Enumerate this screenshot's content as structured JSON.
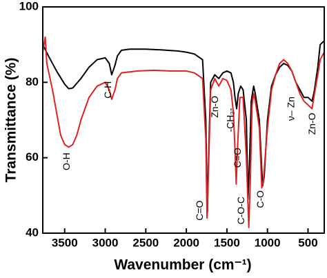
{
  "chart_data": {
    "type": "line",
    "x_label": "Wavenumber (cm⁻¹)",
    "y_label": "Transmittance (%)",
    "xlim": [
      3770,
      300
    ],
    "ylim": [
      40,
      100
    ],
    "xticks": [
      3500,
      3000,
      2500,
      2000,
      1500,
      1000,
      500
    ],
    "yticks": [
      40,
      60,
      80,
      100
    ],
    "series": [
      {
        "color": "#000000",
        "x": [
          3770,
          3700,
          3600,
          3500,
          3450,
          3400,
          3300,
          3200,
          3100,
          3000,
          2950,
          2920,
          2880,
          2850,
          2800,
          2700,
          2500,
          2300,
          2100,
          2000,
          1900,
          1800,
          1760,
          1740,
          1720,
          1700,
          1650,
          1600,
          1550,
          1500,
          1450,
          1420,
          1400,
          1380,
          1360,
          1330,
          1300,
          1260,
          1240,
          1220,
          1200,
          1170,
          1150,
          1100,
          1060,
          1040,
          1000,
          950,
          900,
          850,
          800,
          750,
          700,
          650,
          600,
          550,
          500,
          450,
          420,
          380,
          350,
          300
        ],
        "values": [
          90,
          87,
          83,
          79.5,
          78.3,
          78.5,
          81,
          84,
          86,
          86.5,
          85,
          82,
          84.5,
          87,
          88.5,
          88.8,
          88.8,
          88.6,
          88.3,
          88,
          87.5,
          86,
          70,
          45.5,
          65,
          80,
          82,
          81,
          82.5,
          83,
          82.5,
          80,
          76,
          73,
          77,
          79,
          78,
          70,
          49,
          60,
          75,
          79,
          77,
          70,
          52.5,
          55,
          70,
          79,
          82,
          84,
          85,
          84.5,
          83,
          80,
          78,
          76,
          76,
          75,
          78,
          84,
          90,
          91
        ]
      },
      {
        "color": "#e02020",
        "x": [
          3770,
          3740,
          3720,
          3700,
          3650,
          3600,
          3550,
          3500,
          3450,
          3400,
          3350,
          3300,
          3200,
          3100,
          3000,
          2950,
          2920,
          2880,
          2850,
          2800,
          2600,
          2400,
          2200,
          2000,
          1900,
          1800,
          1760,
          1745,
          1720,
          1700,
          1650,
          1600,
          1550,
          1500,
          1450,
          1420,
          1400,
          1385,
          1370,
          1340,
          1300,
          1260,
          1230,
          1210,
          1190,
          1170,
          1150,
          1100,
          1070,
          1050,
          1000,
          950,
          900,
          850,
          800,
          750,
          700,
          650,
          600,
          550,
          500,
          450,
          420,
          380,
          350,
          300
        ],
        "values": [
          88,
          92,
          85,
          83,
          78,
          72,
          66,
          63.5,
          62.8,
          63.5,
          66,
          70,
          76,
          79,
          80,
          78,
          75.5,
          78,
          81,
          82.5,
          83,
          83.2,
          83,
          83,
          82.5,
          81,
          65,
          44,
          62,
          78,
          81,
          79,
          81,
          80.5,
          78,
          72,
          62,
          53,
          62,
          76,
          76,
          60,
          41.5,
          55,
          74,
          77,
          75,
          68,
          52,
          54,
          68,
          78,
          82,
          85,
          86,
          85,
          83,
          80,
          77,
          75,
          74,
          73,
          77,
          82,
          86,
          88
        ]
      }
    ],
    "annotations": [
      {
        "text": "O-H",
        "x": 3470,
        "y": 59
      },
      {
        "text": "C-H",
        "x": 2960,
        "y": 78
      },
      {
        "text": "C=O",
        "x": 1830,
        "y": 46
      },
      {
        "text": "Zn-O",
        "x": 1640,
        "y": 73.5
      },
      {
        "text": "-CH₂-",
        "x": 1450,
        "y": 70
      },
      {
        "text": "C=O",
        "x": 1360,
        "y": 60
      },
      {
        "text": "C-O-C",
        "x": 1320,
        "y": 46
      },
      {
        "text": "C-O",
        "x": 1080,
        "y": 49
      },
      {
        "text": "ν– Zn",
        "x": 700,
        "y": 73
      },
      {
        "text": "Zn-O",
        "x": 440,
        "y": 69
      }
    ]
  }
}
